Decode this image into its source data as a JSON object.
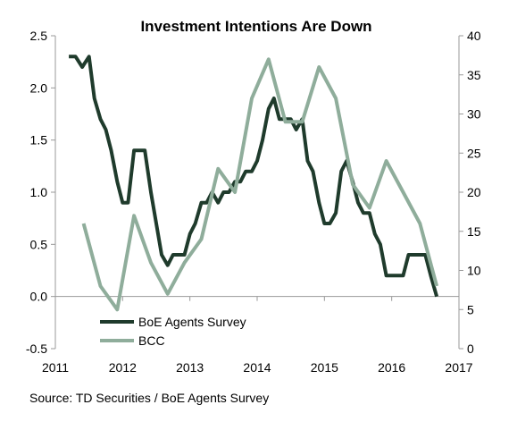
{
  "chart_data": {
    "type": "line",
    "title": "Investment Intentions Are Down",
    "source": "Source: TD Securities / BoE Agents Survey",
    "x_axis": {
      "range": [
        2011,
        2017
      ],
      "ticks": [
        2011,
        2012,
        2013,
        2014,
        2015,
        2016,
        2017
      ],
      "tick_labels": [
        "2011",
        "2012",
        "2013",
        "2014",
        "2015",
        "2016",
        "2017"
      ]
    },
    "y_left": {
      "range": [
        -0.5,
        2.5
      ],
      "ticks": [
        -0.5,
        0.0,
        0.5,
        1.0,
        1.5,
        2.0,
        2.5
      ],
      "tick_labels": [
        "-0.5",
        "0.0",
        "0.5",
        "1.0",
        "1.5",
        "2.0",
        "2.5"
      ]
    },
    "y_right": {
      "range": [
        0,
        40
      ],
      "ticks": [
        0,
        5,
        10,
        15,
        20,
        25,
        30,
        35,
        40
      ],
      "tick_labels": [
        "0",
        "5",
        "10",
        "15",
        "20",
        "25",
        "30",
        "35",
        "40"
      ]
    },
    "grid": false,
    "legend_position": "bottom-left",
    "series": [
      {
        "name": "BoE Agents Survey",
        "axis": "left",
        "color": "#1f3b2c",
        "x": [
          2011.2,
          2011.3,
          2011.4,
          2011.5,
          2011.58,
          2011.67,
          2011.75,
          2011.83,
          2011.92,
          2012.0,
          2012.08,
          2012.17,
          2012.25,
          2012.33,
          2012.42,
          2012.5,
          2012.58,
          2012.67,
          2012.75,
          2012.83,
          2012.92,
          2013.0,
          2013.08,
          2013.17,
          2013.25,
          2013.33,
          2013.42,
          2013.5,
          2013.58,
          2013.67,
          2013.75,
          2013.83,
          2013.92,
          2014.0,
          2014.08,
          2014.17,
          2014.25,
          2014.33,
          2014.42,
          2014.5,
          2014.58,
          2014.67,
          2014.75,
          2014.83,
          2014.92,
          2015.0,
          2015.08,
          2015.17,
          2015.25,
          2015.33,
          2015.42,
          2015.5,
          2015.58,
          2015.67,
          2015.75,
          2015.83,
          2015.92,
          2016.0,
          2016.08,
          2016.17,
          2016.25,
          2016.33,
          2016.42,
          2016.5,
          2016.58,
          2016.67
        ],
        "values": [
          2.3,
          2.3,
          2.2,
          2.3,
          1.9,
          1.7,
          1.6,
          1.4,
          1.1,
          0.9,
          0.9,
          1.4,
          1.4,
          1.4,
          1.0,
          0.7,
          0.4,
          0.3,
          0.4,
          0.4,
          0.4,
          0.6,
          0.7,
          0.9,
          0.9,
          1.0,
          0.9,
          1.0,
          1.0,
          1.1,
          1.1,
          1.2,
          1.2,
          1.3,
          1.5,
          1.8,
          1.9,
          1.7,
          1.7,
          1.7,
          1.6,
          1.7,
          1.3,
          1.2,
          0.9,
          0.7,
          0.7,
          0.8,
          1.2,
          1.3,
          1.1,
          0.9,
          0.8,
          0.8,
          0.6,
          0.5,
          0.2,
          0.2,
          0.2,
          0.2,
          0.4,
          0.4,
          0.4,
          0.4,
          0.2,
          0.0
        ]
      },
      {
        "name": "BCC",
        "axis": "right",
        "color": "#8fad9b",
        "x": [
          2011.42,
          2011.67,
          2011.92,
          2012.17,
          2012.42,
          2012.67,
          2012.92,
          2013.17,
          2013.42,
          2013.67,
          2013.92,
          2014.17,
          2014.42,
          2014.67,
          2014.92,
          2015.17,
          2015.42,
          2015.67,
          2015.92,
          2016.17,
          2016.42,
          2016.67
        ],
        "values": [
          16,
          8,
          5,
          17,
          11,
          7,
          11,
          14,
          23,
          20,
          32,
          37,
          29,
          29,
          36,
          32,
          21,
          18,
          24,
          20,
          16,
          8
        ]
      }
    ]
  }
}
